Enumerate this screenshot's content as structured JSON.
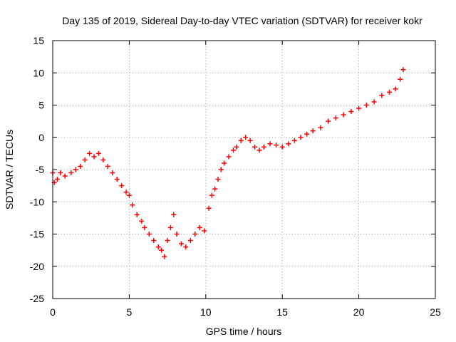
{
  "chart_data": {
    "type": "scatter",
    "title": "Day 135 of 2019, Sidereal Day-to-day VTEC variation (SDTVAR) for receiver kokr",
    "xlabel": "GPS time / hours",
    "ylabel": "SDTVAR / TECUs",
    "xlim": [
      0,
      25
    ],
    "ylim": [
      -25,
      15
    ],
    "xticks": [
      0,
      5,
      10,
      15,
      20,
      25
    ],
    "yticks": [
      -25,
      -20,
      -15,
      -10,
      -5,
      0,
      5,
      10,
      15
    ],
    "xtick_labels": [
      "0",
      "5",
      "10",
      "15",
      "20",
      "25"
    ],
    "ytick_labels": [
      "-25",
      "-20",
      "-15",
      "-10",
      "-5",
      "0",
      "5",
      "10",
      "15"
    ],
    "grid": true,
    "marker": "+",
    "series": [
      {
        "name": "SDTVAR",
        "color": "#ff0000",
        "x": [
          0.0,
          0.1,
          0.3,
          0.5,
          0.8,
          1.2,
          1.5,
          1.8,
          2.1,
          2.4,
          2.7,
          3.0,
          3.3,
          3.6,
          3.9,
          4.2,
          4.5,
          4.8,
          5.0,
          5.2,
          5.5,
          5.8,
          6.0,
          6.3,
          6.6,
          6.9,
          7.1,
          7.3,
          7.5,
          7.7,
          7.9,
          8.1,
          8.4,
          8.7,
          9.0,
          9.3,
          9.6,
          9.9,
          10.2,
          10.4,
          10.6,
          10.8,
          11.0,
          11.2,
          11.5,
          11.8,
          12.0,
          12.3,
          12.6,
          12.9,
          13.2,
          13.5,
          13.8,
          14.2,
          14.6,
          15.0,
          15.4,
          15.8,
          16.2,
          16.6,
          17.0,
          17.5,
          18.0,
          18.5,
          19.0,
          19.5,
          20.0,
          20.5,
          21.0,
          21.5,
          22.0,
          22.4,
          22.7,
          22.9
        ],
        "y": [
          -5.5,
          -7.0,
          -6.5,
          -5.5,
          -6.0,
          -5.5,
          -5.0,
          -4.5,
          -3.5,
          -2.5,
          -3.0,
          -2.5,
          -3.5,
          -4.5,
          -5.5,
          -6.5,
          -7.5,
          -8.5,
          -9.0,
          -10.5,
          -12.0,
          -13.0,
          -14.0,
          -15.0,
          -16.0,
          -17.0,
          -17.5,
          -18.5,
          -16.0,
          -14.0,
          -12.0,
          -15.0,
          -16.5,
          -17.0,
          -16.0,
          -15.0,
          -14.0,
          -14.5,
          -11.0,
          -9.0,
          -8.0,
          -6.5,
          -5.0,
          -4.0,
          -3.0,
          -2.0,
          -1.5,
          -0.5,
          0.0,
          -0.5,
          -1.5,
          -2.0,
          -1.5,
          -1.0,
          -1.2,
          -1.5,
          -1.0,
          -0.5,
          0.0,
          0.5,
          1.0,
          1.5,
          2.5,
          3.0,
          3.5,
          4.0,
          4.5,
          5.0,
          5.5,
          6.5,
          7.0,
          7.5,
          9.0,
          10.5
        ]
      }
    ]
  }
}
